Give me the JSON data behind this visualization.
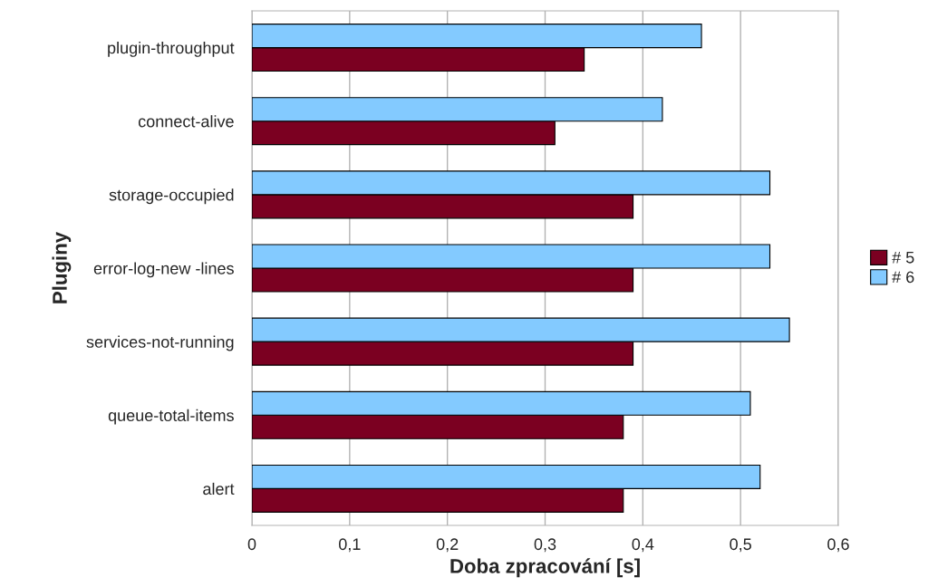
{
  "chart_data": {
    "type": "bar",
    "orientation": "horizontal",
    "xlabel": "Doba zpracování [s]",
    "ylabel": "Pluginy",
    "categories": [
      "plugin-throughput",
      "connect-alive",
      "storage-occupied",
      "error-log-new -lines",
      "services-not-running",
      "queue-total-items",
      "alert"
    ],
    "series": [
      {
        "name": "# 5",
        "color": "#7b0021",
        "values": [
          0.34,
          0.31,
          0.39,
          0.39,
          0.39,
          0.38,
          0.38
        ]
      },
      {
        "name": "# 6",
        "color": "#83caff",
        "values": [
          0.46,
          0.42,
          0.53,
          0.53,
          0.55,
          0.51,
          0.52
        ]
      }
    ],
    "xlim": [
      0,
      0.6
    ],
    "xticks": [
      {
        "value": 0,
        "label": "0"
      },
      {
        "value": 0.1,
        "label": "0,1"
      },
      {
        "value": 0.2,
        "label": "0,2"
      },
      {
        "value": 0.3,
        "label": "0,3"
      },
      {
        "value": 0.4,
        "label": "0,4"
      },
      {
        "value": 0.5,
        "label": "0,5"
      },
      {
        "value": 0.6,
        "label": "0,6"
      }
    ],
    "grid": "x",
    "legend": "right"
  }
}
